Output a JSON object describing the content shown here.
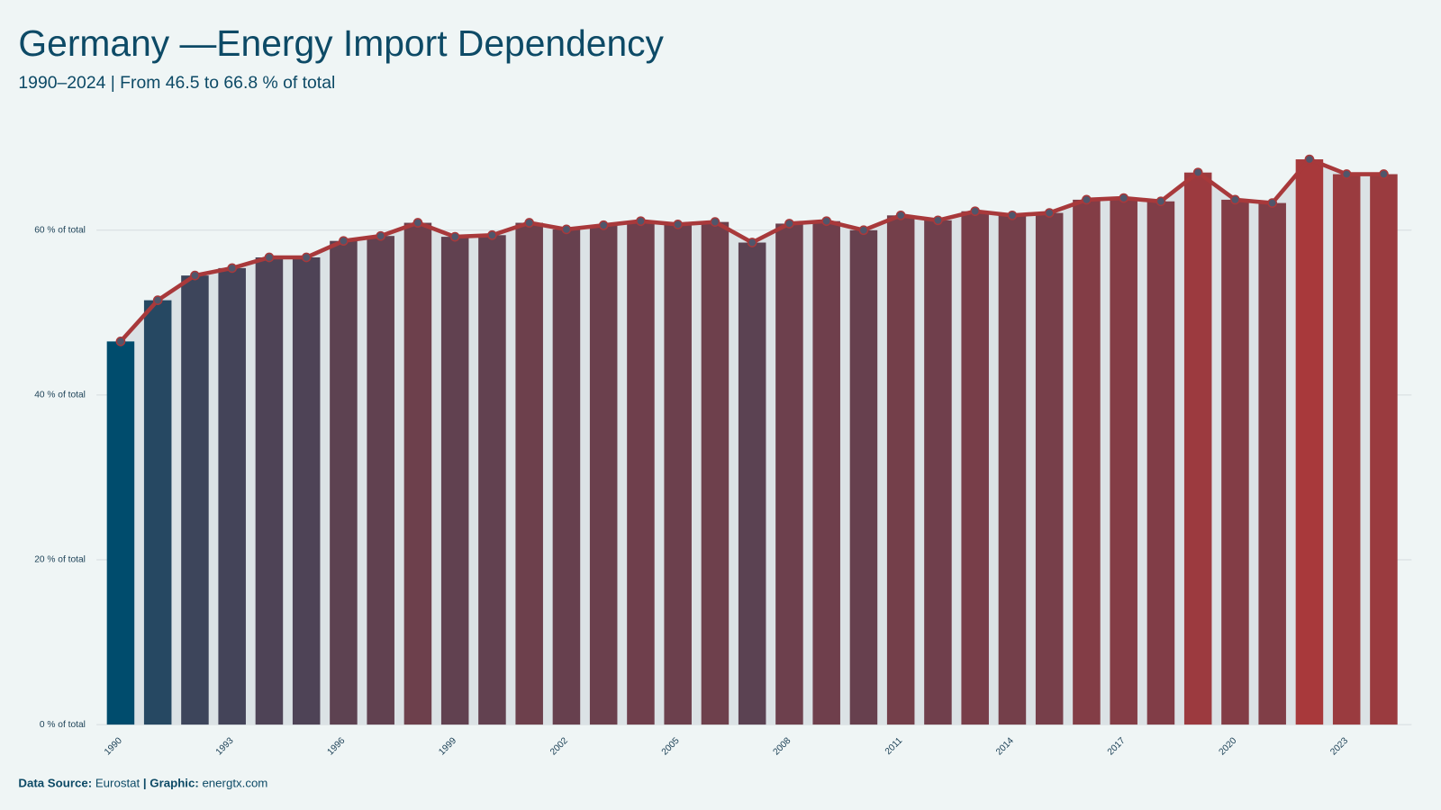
{
  "chart_data": {
    "type": "bar_line",
    "title": "Germany —Energy Import Dependency",
    "subtitle": "1990–2024 | From 46.5 to 66.8 % of total",
    "x": [
      1990,
      1991,
      1992,
      1993,
      1994,
      1995,
      1996,
      1997,
      1998,
      1999,
      2000,
      2001,
      2002,
      2003,
      2004,
      2005,
      2006,
      2007,
      2008,
      2009,
      2010,
      2011,
      2012,
      2013,
      2014,
      2015,
      2016,
      2017,
      2018,
      2019,
      2020,
      2021,
      2022,
      2023,
      2024
    ],
    "values": [
      46.5,
      51.5,
      54.5,
      55.4,
      56.7,
      56.7,
      58.7,
      59.3,
      60.9,
      59.2,
      59.4,
      60.9,
      60.1,
      60.6,
      61.1,
      60.7,
      61.0,
      58.5,
      60.8,
      61.1,
      60.0,
      61.8,
      61.2,
      62.3,
      61.8,
      62.1,
      63.7,
      63.9,
      63.5,
      67.0,
      63.7,
      63.3,
      68.6,
      66.8,
      66.8
    ],
    "xlim": [
      1989.4,
      2024.7
    ],
    "xticks": [
      1990,
      1993,
      1996,
      1999,
      2002,
      2005,
      2008,
      2011,
      2014,
      2017,
      2020,
      2023
    ],
    "ylim": [
      0,
      72
    ],
    "yticks": [
      {
        "value": 0,
        "label": "0 % of total"
      },
      {
        "value": 20,
        "label": "20 % of total"
      },
      {
        "value": 40,
        "label": "40 % of total"
      },
      {
        "value": 60,
        "label": "60 % of total"
      }
    ],
    "grid": true,
    "color_low": "#004c6d",
    "color_high": "#a8393b",
    "line_color": "#a8393b",
    "marker_color": "#50566b",
    "area_color": "#dbe2e5",
    "footer": {
      "source_label": "Data Source:",
      "source": "Eurostat",
      "graphic_label": "| Graphic:",
      "graphic": "energtx.com"
    }
  }
}
